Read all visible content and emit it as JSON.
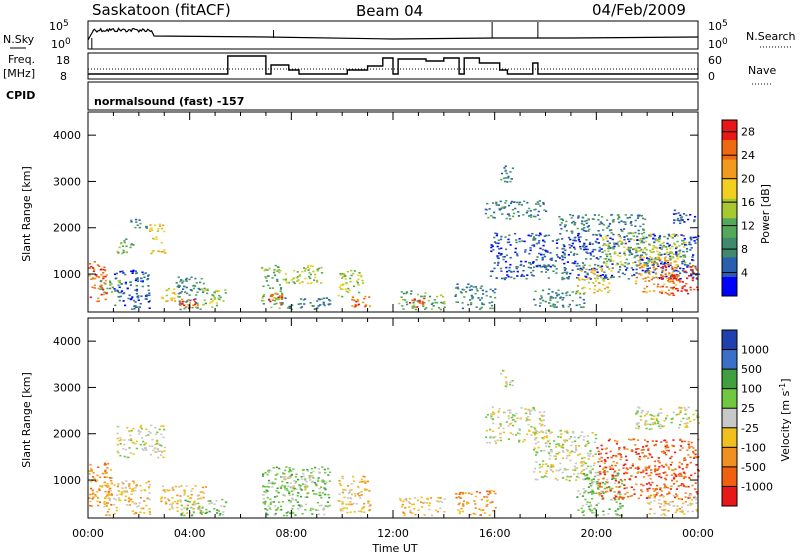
{
  "header": {
    "station": "Saskatoon (fitACF)",
    "beam": "Beam 04",
    "date": "04/Feb/2009"
  },
  "labels": {
    "nsky": "N.Sky",
    "nsearch": "N.Search",
    "freq_top": "Freq.",
    "freq_unit": "[MHz]",
    "nave": "Nave",
    "cpid": "CPID",
    "program": "normalsound (fast) -157",
    "nsky_top": "10^5",
    "nsky_bottom": "10^0",
    "nsearch_top": "10^5",
    "nsearch_bottom": "10^0",
    "freq_hi": "18",
    "freq_lo": "8",
    "nave_hi": "60",
    "nave_lo": "0"
  },
  "colors": {
    "power": [
      "#0000ff",
      "#2a5fb0",
      "#3f8a6e",
      "#54a85a",
      "#a8c832",
      "#f2d020",
      "#f29a20",
      "#ee6a10",
      "#e81818"
    ],
    "velocity": [
      "#2040b0",
      "#3a70c8",
      "#40a040",
      "#70c840",
      "#c8c8c8",
      "#f0c020",
      "#f09020",
      "#f06010",
      "#e81818"
    ]
  },
  "chart_data": [
    {
      "type": "heatmap",
      "name": "power",
      "ylabel": "Slant Range [km]",
      "xlabel": "Time UT",
      "x_ticks": [
        "00:00",
        "04:00",
        "08:00",
        "12:00",
        "16:00",
        "20:00",
        "00:00"
      ],
      "xlim_hours": [
        0,
        24
      ],
      "ylim_km": [
        180,
        4500
      ],
      "y_ticks": [
        1000,
        2000,
        3000,
        4000
      ],
      "colorbar": {
        "label": "Power [dB]",
        "ticks": [
          "4",
          "8",
          "12",
          "16",
          "20",
          "24",
          "28"
        ],
        "range": [
          0,
          30
        ]
      },
      "regions": [
        {
          "t0": 0.0,
          "t1": 0.7,
          "r0": 400,
          "r1": 1400,
          "v": 27
        },
        {
          "t0": 0.4,
          "t1": 1.3,
          "r0": 600,
          "r1": 900,
          "v": 12
        },
        {
          "t0": 1.0,
          "t1": 2.4,
          "r0": 250,
          "r1": 1100,
          "v": 6
        },
        {
          "t0": 1.1,
          "t1": 1.8,
          "r0": 1450,
          "r1": 1800,
          "v": 12
        },
        {
          "t0": 1.6,
          "t1": 2.3,
          "r0": 2000,
          "r1": 2200,
          "v": 8
        },
        {
          "t0": 2.4,
          "t1": 3.0,
          "r0": 1450,
          "r1": 2100,
          "v": 18
        },
        {
          "t0": 2.8,
          "t1": 3.5,
          "r0": 400,
          "r1": 700,
          "v": 20
        },
        {
          "t0": 3.4,
          "t1": 4.6,
          "r0": 250,
          "r1": 950,
          "v": 8
        },
        {
          "t0": 3.5,
          "t1": 4.3,
          "r0": 280,
          "r1": 550,
          "v": 26
        },
        {
          "t0": 4.4,
          "t1": 5.4,
          "r0": 300,
          "r1": 700,
          "v": 16
        },
        {
          "t0": 6.8,
          "t1": 7.6,
          "r0": 250,
          "r1": 1200,
          "v": 12
        },
        {
          "t0": 7.0,
          "t1": 7.6,
          "r0": 350,
          "r1": 600,
          "v": 26
        },
        {
          "t0": 7.6,
          "t1": 9.2,
          "r0": 800,
          "r1": 1200,
          "v": 16
        },
        {
          "t0": 7.6,
          "t1": 9.5,
          "r0": 250,
          "r1": 500,
          "v": 8
        },
        {
          "t0": 9.8,
          "t1": 10.8,
          "r0": 500,
          "r1": 1100,
          "v": 16
        },
        {
          "t0": 10.3,
          "t1": 11.1,
          "r0": 300,
          "r1": 550,
          "v": 26
        },
        {
          "t0": 12.2,
          "t1": 14.0,
          "r0": 250,
          "r1": 650,
          "v": 12
        },
        {
          "t0": 12.6,
          "t1": 13.2,
          "r0": 300,
          "r1": 500,
          "v": 26
        },
        {
          "t0": 14.4,
          "t1": 16.0,
          "r0": 250,
          "r1": 800,
          "v": 8
        },
        {
          "t0": 15.6,
          "t1": 18.0,
          "r0": 2200,
          "r1": 2600,
          "v": 10
        },
        {
          "t0": 16.2,
          "t1": 16.7,
          "r0": 3000,
          "r1": 3400,
          "v": 10
        },
        {
          "t0": 15.8,
          "t1": 24.0,
          "r0": 900,
          "r1": 1900,
          "v": 6
        },
        {
          "t0": 17.5,
          "t1": 19.5,
          "r0": 300,
          "r1": 700,
          "v": 10
        },
        {
          "t0": 18.5,
          "t1": 22.0,
          "r0": 1900,
          "r1": 2300,
          "v": 8
        },
        {
          "t0": 19.2,
          "t1": 20.6,
          "r0": 600,
          "r1": 1200,
          "v": 20
        },
        {
          "t0": 20.2,
          "t1": 23.5,
          "r0": 1200,
          "r1": 1900,
          "v": 14
        },
        {
          "t0": 21.5,
          "t1": 23.2,
          "r0": 600,
          "r1": 1400,
          "v": 22
        },
        {
          "t0": 22.5,
          "t1": 24.0,
          "r0": 550,
          "r1": 1200,
          "v": 28
        },
        {
          "t0": 23.0,
          "t1": 24.0,
          "r0": 2100,
          "r1": 2400,
          "v": 6
        }
      ]
    },
    {
      "type": "heatmap",
      "name": "velocity",
      "ylabel": "Slant Range [km]",
      "xlabel": "Time UT",
      "x_ticks": [
        "00:00",
        "04:00",
        "08:00",
        "12:00",
        "16:00",
        "20:00",
        "00:00"
      ],
      "xlim_hours": [
        0,
        24
      ],
      "ylim_km": [
        180,
        4500
      ],
      "y_ticks": [
        1000,
        2000,
        3000,
        4000
      ],
      "colorbar": {
        "label": "Velocity [m s^-1]",
        "ticks": [
          "1000",
          "500",
          "100",
          "25",
          "-25",
          "-100",
          "-500",
          "-1000"
        ]
      },
      "regions": [
        {
          "t0": 0.0,
          "t1": 0.9,
          "r0": 400,
          "r1": 1400,
          "v": 6
        },
        {
          "t0": 0.6,
          "t1": 2.4,
          "r0": 250,
          "r1": 1000,
          "v": 5
        },
        {
          "t0": 1.1,
          "t1": 3.0,
          "r0": 1500,
          "r1": 2200,
          "v": 4
        },
        {
          "t0": 2.8,
          "t1": 4.6,
          "r0": 300,
          "r1": 900,
          "v": 5
        },
        {
          "t0": 3.6,
          "t1": 5.4,
          "r0": 250,
          "r1": 600,
          "v": 3
        },
        {
          "t0": 6.8,
          "t1": 9.5,
          "r0": 250,
          "r1": 1300,
          "v": 3
        },
        {
          "t0": 7.6,
          "t1": 9.2,
          "r0": 800,
          "r1": 1100,
          "v": 4
        },
        {
          "t0": 9.8,
          "t1": 11.1,
          "r0": 300,
          "r1": 1100,
          "v": 5
        },
        {
          "t0": 12.2,
          "t1": 14.0,
          "r0": 250,
          "r1": 650,
          "v": 5
        },
        {
          "t0": 14.4,
          "t1": 16.0,
          "r0": 250,
          "r1": 800,
          "v": 6
        },
        {
          "t0": 15.6,
          "t1": 18.0,
          "r0": 1800,
          "r1": 2600,
          "v": 4
        },
        {
          "t0": 16.2,
          "t1": 16.7,
          "r0": 3000,
          "r1": 3400,
          "v": 4
        },
        {
          "t0": 17.5,
          "t1": 20.0,
          "r0": 1000,
          "r1": 2100,
          "v": 4
        },
        {
          "t0": 19.2,
          "t1": 21.0,
          "r0": 250,
          "r1": 1200,
          "v": 3
        },
        {
          "t0": 20.0,
          "t1": 24.0,
          "r0": 600,
          "r1": 1900,
          "v": 7
        },
        {
          "t0": 22.0,
          "t1": 24.0,
          "r0": 250,
          "r1": 700,
          "v": 5
        },
        {
          "t0": 21.5,
          "t1": 24.0,
          "r0": 2100,
          "r1": 2600,
          "v": 4
        }
      ]
    }
  ]
}
